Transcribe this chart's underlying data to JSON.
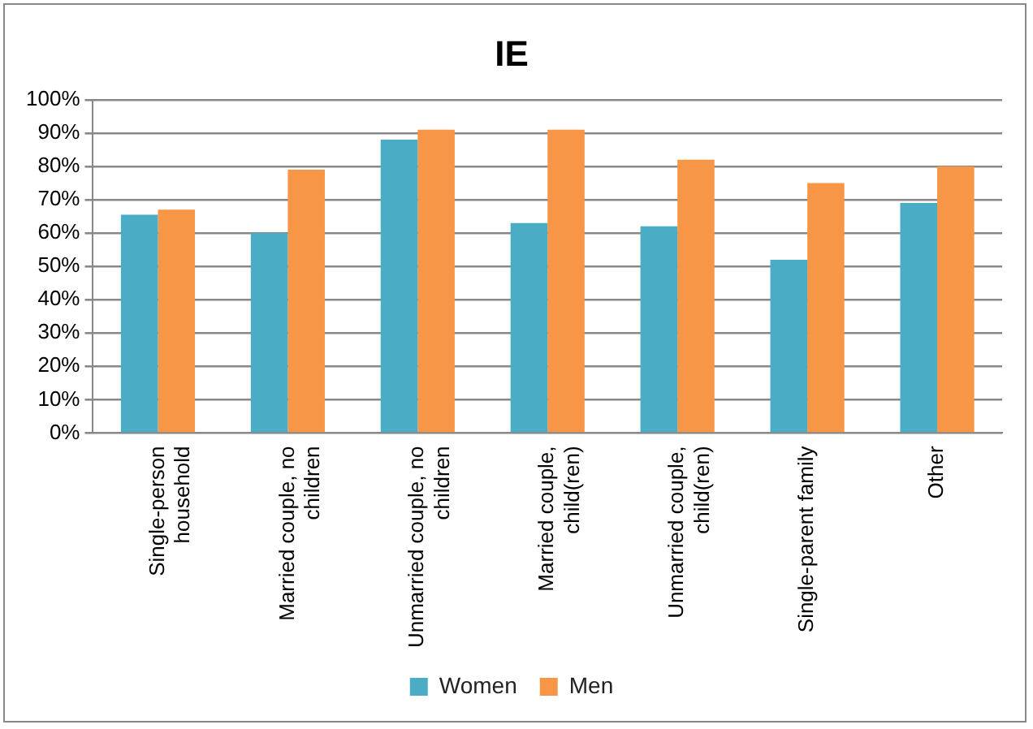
{
  "chart_data": {
    "type": "bar",
    "title": "IE",
    "categories": [
      "Single-person household",
      "Married couple, no children",
      "Unmarried couple, no children",
      "Married couple, child(ren)",
      "Unmarried couple, child(ren)",
      "Single-parent family",
      "Other"
    ],
    "series": [
      {
        "name": "Women",
        "color": "#4bacc6",
        "values": [
          65.5,
          60,
          88,
          63,
          62,
          52,
          69
        ]
      },
      {
        "name": "Men",
        "color": "#f79646",
        "values": [
          67,
          79,
          91,
          91,
          82,
          75,
          80
        ]
      }
    ],
    "ylim": [
      0,
      100
    ],
    "yticks": [
      {
        "value": 0,
        "label": "0%"
      },
      {
        "value": 10,
        "label": "10%"
      },
      {
        "value": 20,
        "label": "20%"
      },
      {
        "value": 30,
        "label": "30%"
      },
      {
        "value": 40,
        "label": "40%"
      },
      {
        "value": 50,
        "label": "50%"
      },
      {
        "value": 60,
        "label": "60%"
      },
      {
        "value": 70,
        "label": "70%"
      },
      {
        "value": 80,
        "label": "80%"
      },
      {
        "value": 90,
        "label": "90%"
      },
      {
        "value": 100,
        "label": "100%"
      }
    ],
    "grid": "y",
    "legend": "bottom"
  }
}
